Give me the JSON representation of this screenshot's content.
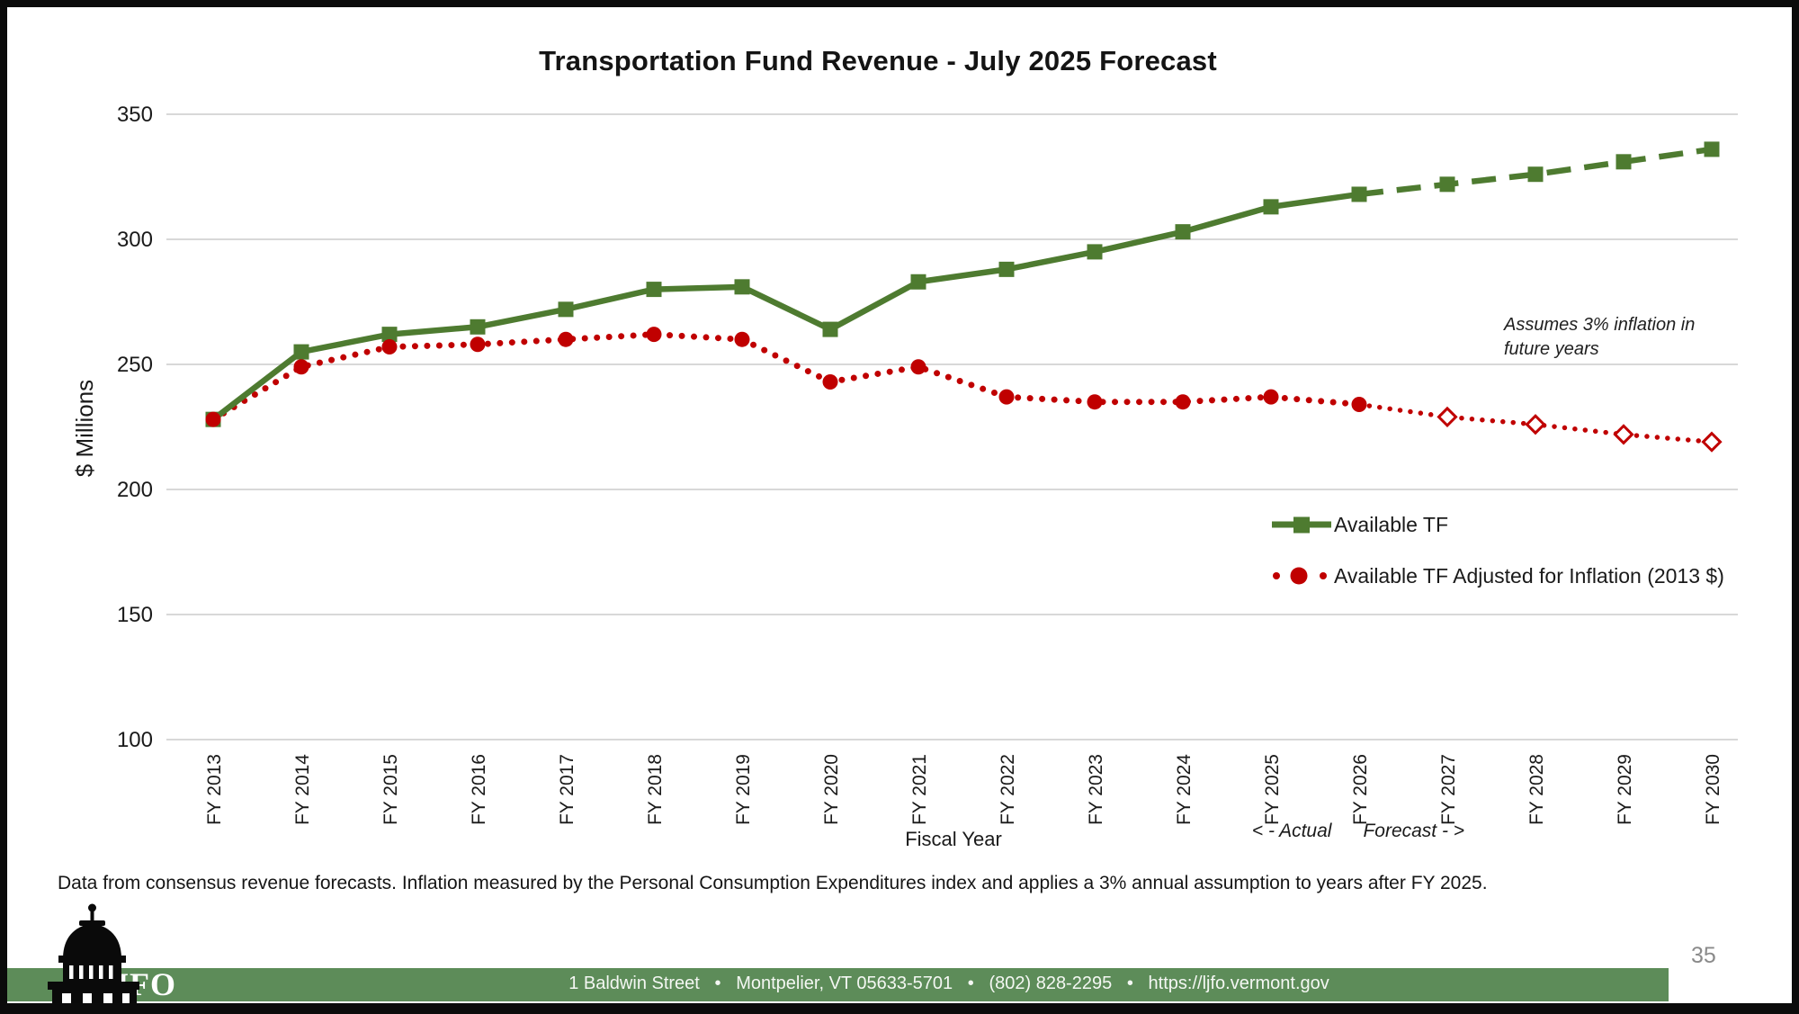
{
  "slide": {
    "title": "Transportation Fund Revenue - July 2025 Forecast",
    "footnote": "Data from consensus revenue forecasts. Inflation measured by the Personal Consumption Expenditures index and applies a 3% annual assumption to years after FY 2025.",
    "page_number": "35"
  },
  "footer": {
    "org": "JFO",
    "address": "1 Baldwin Street   •   Montpelier, VT 05633-5701   •   (802) 828-2295   •   https://ljfo.vermont.gov",
    "bar_color": "#5d8c59"
  },
  "chart_data": {
    "type": "line",
    "title": "Transportation Fund Revenue - July 2025 Forecast",
    "xlabel": "Fiscal Year",
    "ylabel": "$ Millions",
    "ylim": [
      100,
      350
    ],
    "yticks": [
      100,
      150,
      200,
      250,
      300,
      350
    ],
    "grid": true,
    "legend_position": "right-middle",
    "categories": [
      "FY 2013",
      "FY 2014",
      "FY 2015",
      "FY 2016",
      "FY 2017",
      "FY 2018",
      "FY 2019",
      "FY 2020",
      "FY 2021",
      "FY 2022",
      "FY 2023",
      "FY 2024",
      "FY 2025",
      "FY 2026",
      "FY 2027",
      "FY 2028",
      "FY 2029",
      "FY 2030"
    ],
    "forecast_start_index": 13,
    "axis_note": "< - Actual      Forecast - >",
    "annotation": "Assumes 3% inflation in\nfuture years",
    "series": [
      {
        "name": "Available TF",
        "color": "#4e7b30",
        "marker": "square",
        "line": "solid, dashed after FY 2026",
        "values": [
          228,
          255,
          262,
          265,
          272,
          280,
          281,
          264,
          283,
          288,
          295,
          303,
          313,
          318,
          322,
          326,
          331,
          336
        ]
      },
      {
        "name": "Available TF Adjusted for Inflation (2013 $)",
        "color": "#c00000",
        "marker": "filled circle, open diamond after FY 2026",
        "line": "dotted",
        "values": [
          228,
          249,
          257,
          258,
          260,
          262,
          260,
          243,
          249,
          237,
          235,
          235,
          237,
          234,
          229,
          226,
          222,
          219
        ]
      }
    ]
  }
}
